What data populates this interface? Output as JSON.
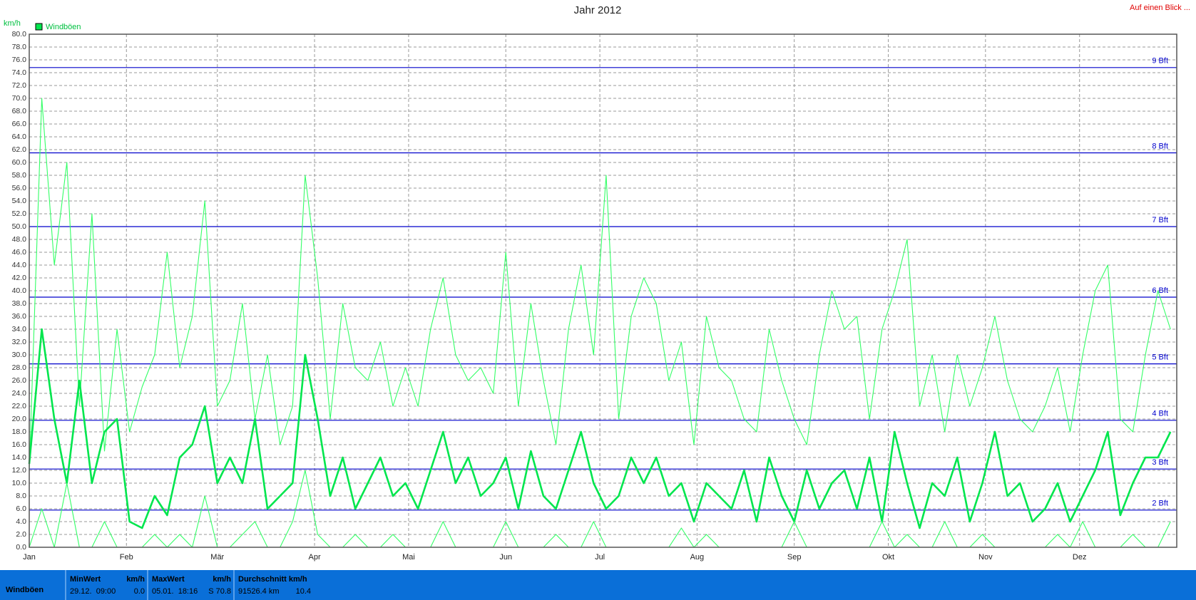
{
  "chart_data": {
    "type": "line",
    "title": "Jahr 2012",
    "y_label": "km/h",
    "xlim": [
      0,
      366
    ],
    "ylim": [
      0,
      80
    ],
    "grid": true,
    "legend": "top-left",
    "xticks": [
      {
        "value": 0,
        "label": "Jan"
      },
      {
        "value": 31,
        "label": "Feb"
      },
      {
        "value": 60,
        "label": "Mär"
      },
      {
        "value": 91,
        "label": "Apr"
      },
      {
        "value": 121,
        "label": "Mai"
      },
      {
        "value": 152,
        "label": "Jun"
      },
      {
        "value": 182,
        "label": "Jul"
      },
      {
        "value": 213,
        "label": "Aug"
      },
      {
        "value": 244,
        "label": "Sep"
      },
      {
        "value": 274,
        "label": "Okt"
      },
      {
        "value": 305,
        "label": "Nov"
      },
      {
        "value": 335,
        "label": "Dez"
      }
    ],
    "yticks": [
      {
        "value": 0,
        "label": "0.0"
      },
      {
        "value": 2,
        "label": "2.0"
      },
      {
        "value": 4,
        "label": "4.0"
      },
      {
        "value": 6,
        "label": "6.0"
      },
      {
        "value": 8,
        "label": "8.0"
      },
      {
        "value": 10,
        "label": "10.0"
      },
      {
        "value": 12,
        "label": "12.0"
      },
      {
        "value": 14,
        "label": "14.0"
      },
      {
        "value": 16,
        "label": "16.0"
      },
      {
        "value": 18,
        "label": "18.0"
      },
      {
        "value": 20,
        "label": "20.0"
      },
      {
        "value": 22,
        "label": "22.0"
      },
      {
        "value": 24,
        "label": "24.0"
      },
      {
        "value": 26,
        "label": "26.0"
      },
      {
        "value": 28,
        "label": "28.0"
      },
      {
        "value": 30,
        "label": "30.0"
      },
      {
        "value": 32,
        "label": "32.0"
      },
      {
        "value": 34,
        "label": "34.0"
      },
      {
        "value": 36,
        "label": "36.0"
      },
      {
        "value": 38,
        "label": "38.0"
      },
      {
        "value": 40,
        "label": "40.0"
      },
      {
        "value": 42,
        "label": "42.0"
      },
      {
        "value": 44,
        "label": "44.0"
      },
      {
        "value": 46,
        "label": "46.0"
      },
      {
        "value": 48,
        "label": "48.0"
      },
      {
        "value": 50,
        "label": "50.0"
      },
      {
        "value": 52,
        "label": "52.0"
      },
      {
        "value": 54,
        "label": "54.0"
      },
      {
        "value": 56,
        "label": "56.0"
      },
      {
        "value": 58,
        "label": "58.0"
      },
      {
        "value": 60,
        "label": "60.0"
      },
      {
        "value": 62,
        "label": "62.0"
      },
      {
        "value": 64,
        "label": "64.0"
      },
      {
        "value": 66,
        "label": "66.0"
      },
      {
        "value": 68,
        "label": "68.0"
      },
      {
        "value": 70,
        "label": "70.0"
      },
      {
        "value": 72,
        "label": "72.0"
      },
      {
        "value": 74,
        "label": "74.0"
      },
      {
        "value": 76,
        "label": "76.0"
      },
      {
        "value": 78,
        "label": "78.0"
      },
      {
        "value": 80,
        "label": "80.0"
      }
    ],
    "reference_lines": [
      {
        "value": 5.8,
        "label": "2 Bft"
      },
      {
        "value": 12.2,
        "label": "3 Bft"
      },
      {
        "value": 19.8,
        "label": "4 Bft"
      },
      {
        "value": 28.6,
        "label": "5 Bft"
      },
      {
        "value": 39.0,
        "label": "6 Bft"
      },
      {
        "value": 50.0,
        "label": "7 Bft"
      },
      {
        "value": 61.5,
        "label": "8 Bft"
      },
      {
        "value": 74.8,
        "label": "9 Bft"
      }
    ],
    "reference_color": "#0000cc",
    "x": [
      0,
      4,
      8,
      12,
      16,
      20,
      24,
      28,
      32,
      36,
      40,
      44,
      48,
      52,
      56,
      60,
      64,
      68,
      72,
      76,
      80,
      84,
      88,
      92,
      96,
      100,
      104,
      108,
      112,
      116,
      120,
      124,
      128,
      132,
      136,
      140,
      144,
      148,
      152,
      156,
      160,
      164,
      168,
      172,
      176,
      180,
      184,
      188,
      192,
      196,
      200,
      204,
      208,
      212,
      216,
      220,
      224,
      228,
      232,
      236,
      240,
      244,
      248,
      252,
      256,
      260,
      264,
      268,
      272,
      276,
      280,
      284,
      288,
      292,
      296,
      300,
      304,
      308,
      312,
      316,
      320,
      324,
      328,
      332,
      336,
      340,
      344,
      348,
      352,
      356,
      360,
      364
    ],
    "series": [
      {
        "name": "Windböen",
        "color": "#33ff66",
        "values": [
          12,
          70,
          44,
          60,
          22,
          52,
          15,
          34,
          18,
          25,
          30,
          46,
          28,
          36,
          54,
          22,
          26,
          38,
          20,
          30,
          16,
          22,
          58,
          42,
          20,
          38,
          28,
          26,
          32,
          22,
          28,
          22,
          34,
          42,
          30,
          26,
          28,
          24,
          46,
          22,
          38,
          26,
          16,
          34,
          44,
          30,
          58,
          20,
          36,
          42,
          38,
          26,
          32,
          16,
          36,
          28,
          26,
          20,
          18,
          34,
          26,
          20,
          16,
          30,
          40,
          34,
          36,
          20,
          34,
          40,
          48,
          22,
          30,
          18,
          30,
          22,
          28,
          36,
          26,
          20,
          18,
          22,
          28,
          18,
          30,
          40,
          44,
          20,
          18,
          30,
          40,
          34
        ]
      },
      {
        "color": "#00e64d",
        "values": [
          13,
          34,
          20,
          10,
          26,
          10,
          18,
          20,
          4,
          3,
          8,
          5,
          14,
          16,
          22,
          10,
          14,
          10,
          20,
          6,
          8,
          10,
          30,
          20,
          8,
          14,
          6,
          10,
          14,
          8,
          10,
          6,
          12,
          18,
          10,
          14,
          8,
          10,
          14,
          6,
          15,
          8,
          6,
          12,
          18,
          10,
          6,
          8,
          14,
          10,
          14,
          8,
          10,
          4,
          10,
          8,
          6,
          12,
          4,
          14,
          8,
          4,
          12,
          6,
          10,
          12,
          6,
          14,
          4,
          18,
          10,
          3,
          10,
          8,
          14,
          4,
          10,
          18,
          8,
          10,
          4,
          6,
          10,
          4,
          8,
          12,
          18,
          5,
          10,
          14,
          14,
          18
        ]
      },
      {
        "color": "#33ff66",
        "values": [
          0,
          6,
          0,
          10,
          0,
          0,
          4,
          0,
          0,
          0,
          2,
          0,
          2,
          0,
          8,
          0,
          0,
          2,
          4,
          0,
          0,
          4,
          12,
          2,
          0,
          0,
          2,
          0,
          0,
          2,
          0,
          0,
          0,
          4,
          0,
          0,
          0,
          0,
          4,
          0,
          0,
          0,
          2,
          0,
          0,
          4,
          0,
          0,
          0,
          0,
          0,
          0,
          3,
          0,
          2,
          0,
          0,
          0,
          0,
          0,
          0,
          4,
          0,
          0,
          0,
          0,
          0,
          0,
          4,
          0,
          2,
          0,
          0,
          4,
          0,
          0,
          2,
          0,
          0,
          0,
          0,
          0,
          2,
          0,
          4,
          0,
          0,
          0,
          2,
          0,
          0,
          4
        ]
      }
    ]
  },
  "link": "Auf einen Blick ...",
  "summary": {
    "row_label": "Windböen",
    "columns": [
      {
        "header": "MinWert",
        "unit": "km/h",
        "time": "29.12.  09:00",
        "value": "0.0"
      },
      {
        "header": "MaxWert",
        "unit": "km/h",
        "time": "05.01.  18:16",
        "value": "S 70.8"
      },
      {
        "header": "Durchschnitt km/h",
        "time": "91526.4 km",
        "value": "10.4"
      }
    ]
  }
}
